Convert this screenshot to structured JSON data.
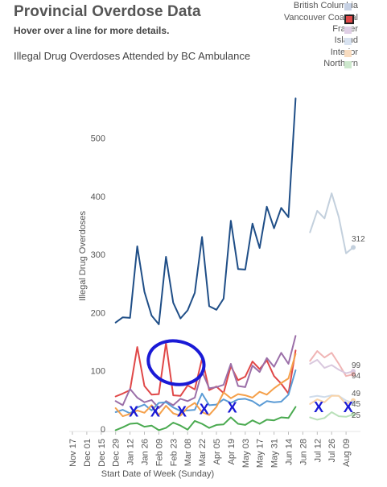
{
  "header": {
    "title": "Provincial Overdose Data",
    "subtitle": "Hover over a line for more details.",
    "chart_title": "Illegal Drug Overdoses Attended by BC Ambulance"
  },
  "legend": {
    "items": [
      {
        "label": "British Columbia",
        "color": "#c6d1e4",
        "selected": false
      },
      {
        "label": "Vancouver Coastal",
        "color": "#e04848",
        "selected": true
      },
      {
        "label": "Fraser",
        "color": "#e0cfe6",
        "selected": false
      },
      {
        "label": "Island",
        "color": "#d8e2f0",
        "selected": false
      },
      {
        "label": "Interior",
        "color": "#f8dcc0",
        "selected": false
      },
      {
        "label": "Northern",
        "color": "#cde8cd",
        "selected": false
      }
    ]
  },
  "chart_data": {
    "type": "line",
    "xlabel": "Start Date of Week (Sunday)",
    "ylabel": "Illegal Drug Overdoses",
    "ylim": [
      0,
      580
    ],
    "yticks": [
      0,
      100,
      200,
      300,
      400,
      500
    ],
    "x_tick_labels": [
      "Nov 17",
      "Dec 01",
      "Dec 15",
      "Dec 29",
      "Jan 12",
      "Jan 26",
      "Feb 09",
      "Feb 23",
      "Mar 08",
      "Mar 22",
      "Apr 05",
      "Apr 19",
      "May 03",
      "May 17",
      "May 31",
      "Jun 14",
      "Jun 28",
      "Jul 12",
      "Jul 26",
      "Aug 09"
    ],
    "end_labels": [
      "312",
      "99",
      "94",
      "49",
      "45",
      "25"
    ],
    "series": [
      {
        "color": "#1f4e87",
        "width": 2,
        "segments": [
          {
            "start_week": 6,
            "values": [
              183,
              192,
              191,
              314,
              236,
              195,
              180,
              296,
              217,
              190,
              204,
              234,
              330,
              211,
              205,
              224,
              358,
              275,
              274,
              353,
              311,
              382,
              345,
              380,
              364,
              568
            ]
          }
        ]
      },
      {
        "color": "#c3d0dd",
        "width": 2,
        "segments": [
          {
            "start_week": 33,
            "values": [
              338,
              375,
              362,
              405,
              364,
              302,
              312
            ]
          }
        ]
      },
      {
        "color": "#e04848",
        "width": 2,
        "segments": [
          {
            "start_week": 6,
            "values": [
              56,
              61,
              67,
              141,
              74,
              59,
              60,
              148,
              58,
              57,
              75,
              68,
              121,
              67,
              73,
              62,
              108,
              84,
              90,
              116,
              103,
              118,
              91,
              78,
              61,
              135
            ]
          }
        ]
      },
      {
        "color": "#f0b5b5",
        "width": 2,
        "segments": [
          {
            "start_week": 33,
            "values": [
              117,
              134,
              123,
              131,
              112,
              91,
              94
            ]
          }
        ]
      },
      {
        "color": "#9b6fa8",
        "width": 2,
        "segments": [
          {
            "start_week": 6,
            "values": [
              48,
              41,
              69,
              54,
              46,
              50,
              36,
              48,
              41,
              52,
              48,
              54,
              99,
              70,
              72,
              76,
              112,
              74,
              72,
              109,
              98,
              122,
              107,
              131,
              112,
              160
            ]
          }
        ]
      },
      {
        "color": "#d9c8de",
        "width": 2,
        "segments": [
          {
            "start_week": 33,
            "values": [
              112,
              119,
              105,
              110,
              102,
              96,
              99
            ]
          }
        ]
      },
      {
        "color": "#5b9bd5",
        "width": 2,
        "segments": [
          {
            "start_week": 6,
            "values": [
              29,
              33,
              27,
              37,
              42,
              32,
              45,
              46,
              37,
              31,
              32,
              33,
              61,
              41,
              42,
              51,
              45,
              51,
              52,
              48,
              40,
              48,
              46,
              47,
              59,
              101
            ]
          }
        ]
      },
      {
        "color": "#cfdceb",
        "width": 2,
        "segments": [
          {
            "start_week": 33,
            "values": [
              55,
              57,
              55,
              58,
              57,
              49,
              45
            ]
          }
        ]
      },
      {
        "color": "#f5a04a",
        "width": 2,
        "segments": [
          {
            "start_week": 6,
            "values": [
              36,
              22,
              26,
              32,
              28,
              41,
              24,
              40,
              27,
              23,
              37,
              45,
              29,
              24,
              38,
              63,
              53,
              60,
              58,
              54,
              64,
              59,
              70,
              79,
              87,
              129
            ]
          }
        ]
      },
      {
        "color": "#f8d3a8",
        "width": 2,
        "segments": [
          {
            "start_week": 33,
            "values": [
              43,
              51,
              46,
              57,
              57,
              43,
              49
            ]
          }
        ]
      },
      {
        "color": "#4aaa50",
        "width": 2,
        "segments": [
          {
            "start_week": 6,
            "values": [
              -2,
              3,
              9,
              10,
              4,
              6,
              -2,
              2,
              11,
              6,
              -1,
              14,
              9,
              2,
              7,
              8,
              20,
              9,
              7,
              15,
              9,
              16,
              15,
              20,
              19,
              38
            ]
          }
        ]
      },
      {
        "color": "#b9e0b9",
        "width": 2,
        "segments": [
          {
            "start_week": 33,
            "values": [
              20,
              16,
              19,
              29,
              22,
              21,
              25
            ]
          }
        ]
      }
    ],
    "end_points": [
      {
        "week": 39,
        "value": 312,
        "color": "#c3d0dd"
      },
      {
        "week": 39,
        "value": 99,
        "color": "#d9c8de"
      },
      {
        "week": 39,
        "value": 94,
        "color": "#f0b5b5"
      },
      {
        "week": 39,
        "value": 49,
        "color": "#f8d3a8"
      },
      {
        "week": 39,
        "value": 45,
        "color": "#cfdceb"
      },
      {
        "week": 39,
        "value": 25,
        "color": "#b9e0b9"
      }
    ],
    "annotations": {
      "ellipse": {
        "week": 14.4,
        "value": 114,
        "rx_weeks": 3.9,
        "ry_value": 37,
        "color": "#1a1ad6"
      },
      "markers": [
        {
          "week": 8.5,
          "value": 31,
          "label": "X"
        },
        {
          "week": 11.5,
          "value": 31,
          "label": "X"
        },
        {
          "week": 15.2,
          "value": 31,
          "label": "X"
        },
        {
          "week": 18.3,
          "value": 35,
          "label": "X"
        },
        {
          "week": 22.2,
          "value": 38,
          "label": "X"
        },
        {
          "week": 34.2,
          "value": 39,
          "label": "X"
        },
        {
          "week": 38.3,
          "value": 39,
          "label": "X"
        }
      ]
    }
  }
}
